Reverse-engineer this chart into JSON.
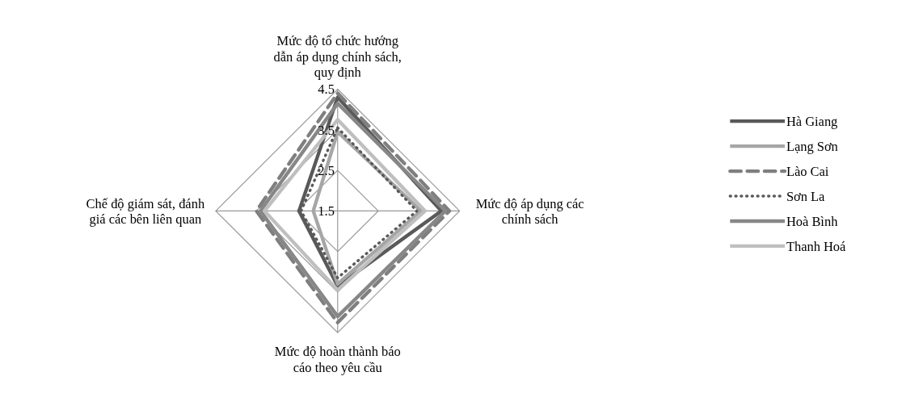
{
  "chart_data": {
    "type": "radar",
    "categories": [
      "Mức độ tổ chức hướng dẫn áp dụng chính sách, quy định",
      "Mức độ áp dụng các chính sách",
      "Mức độ hoàn thành báo cáo theo yêu cầu",
      "Chế độ giám sát, đánh giá các bên liên quan"
    ],
    "ylim": [
      1.5,
      4.5
    ],
    "yticks": [
      1.5,
      2.5,
      3.5,
      4.5
    ],
    "grid": true,
    "legend": "right",
    "series": [
      {
        "name": "Hà Giang",
        "color": "#595959",
        "line_style": "solid",
        "values": [
          4.3,
          4.05,
          3.35,
          2.45
        ]
      },
      {
        "name": "Lạng Sơn",
        "color": "#a6a6a6",
        "line_style": "solid",
        "values": [
          3.45,
          3.55,
          3.3,
          2.1
        ]
      },
      {
        "name": "Lào Cai",
        "color": "#7f7f7f",
        "line_style": "dashed",
        "values": [
          4.4,
          4.25,
          4.25,
          3.5
        ]
      },
      {
        "name": "Sơn La",
        "color": "#595959",
        "line_style": "dotted",
        "values": [
          3.55,
          3.45,
          3.15,
          2.4
        ]
      },
      {
        "name": "Hoà Bình",
        "color": "#878787",
        "line_style": "solid",
        "values": [
          4.15,
          4.15,
          4.1,
          3.4
        ]
      },
      {
        "name": "Thanh Hoá",
        "color": "#bfbfbf",
        "line_style": "solid",
        "values": [
          3.75,
          3.65,
          3.45,
          3.3
        ]
      }
    ]
  }
}
